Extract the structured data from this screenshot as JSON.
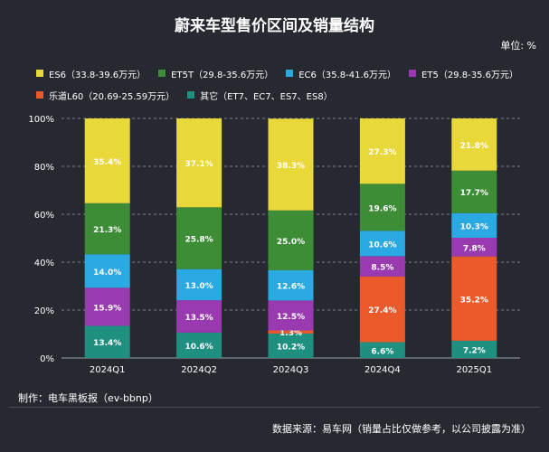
{
  "title": "蔚来车型售价区间及销量结构",
  "unit": "单位: %",
  "credit": "制作：电车黑板报（ev-bbnp）",
  "source": "数据来源：易车网（销量占比仅做参考，以公司披露为准）",
  "chart_data": {
    "type": "bar",
    "stacked": true,
    "title": "蔚来车型售价区间及销量结构",
    "ylabel": "%",
    "ylim": [
      0,
      100
    ],
    "yticks": [
      "0%",
      "20%",
      "40%",
      "60%",
      "80%",
      "100%"
    ],
    "grid": true,
    "categories": [
      "2024Q1",
      "2024Q2",
      "2024Q3",
      "2024Q4",
      "2025Q1"
    ],
    "series": [
      {
        "name": "其它（ET7、EC7、ES7、ES8）",
        "color": "#1f8f80",
        "values": [
          13.4,
          10.6,
          10.2,
          6.6,
          7.2
        ],
        "labels": [
          "13.4%",
          "10.6%",
          "10.2%",
          "6.6%",
          "7.2%"
        ]
      },
      {
        "name": "乐道L60（20.69-25.59万元）",
        "color": "#ea5a2a",
        "values": [
          0,
          0,
          1.3,
          27.4,
          35.2
        ],
        "labels": [
          "",
          "",
          "1.3%",
          "27.4%",
          "35.2%"
        ]
      },
      {
        "name": "ET5（29.8-35.6万元）",
        "color": "#9a3ab0",
        "values": [
          15.9,
          13.5,
          12.5,
          8.5,
          7.8
        ],
        "labels": [
          "15.9%",
          "13.5%",
          "12.5%",
          "8.5%",
          "7.8%"
        ]
      },
      {
        "name": "EC6（35.8-41.6万元）",
        "color": "#2aa9e2",
        "values": [
          14.0,
          13.0,
          12.6,
          10.6,
          10.3
        ],
        "labels": [
          "14.0%",
          "13.0%",
          "12.6%",
          "10.6%",
          "10.3%"
        ]
      },
      {
        "name": "ET5T（29.8-35.6万元）",
        "color": "#3c8d35",
        "values": [
          21.3,
          25.8,
          25.0,
          19.6,
          17.7
        ],
        "labels": [
          "21.3%",
          "25.8%",
          "25.0%",
          "19.6%",
          "17.7%"
        ]
      },
      {
        "name": "ES6（33.8-39.6万元）",
        "color": "#e9d83a",
        "values": [
          35.4,
          37.1,
          38.3,
          27.3,
          21.8
        ],
        "labels": [
          "35.4%",
          "37.1%",
          "38.3%",
          "27.3%",
          "21.8%"
        ]
      }
    ],
    "legend": {
      "rows": [
        [
          {
            "name": "ES6（33.8-39.6万元）",
            "color": "#e9d83a"
          },
          {
            "name": "ET5T（29.8-35.6万元）",
            "color": "#3c8d35"
          },
          {
            "name": "EC6（35.8-41.6万元）",
            "color": "#2aa9e2"
          },
          {
            "name": "ET5（29.8-35.6万元）",
            "color": "#9a3ab0"
          }
        ],
        [
          {
            "name": "乐道L60（20.69-25.59万元）",
            "color": "#ea5a2a"
          },
          {
            "name": "其它（ET7、EC7、ES7、ES8）",
            "color": "#1f8f80"
          }
        ]
      ],
      "position": "top"
    }
  }
}
